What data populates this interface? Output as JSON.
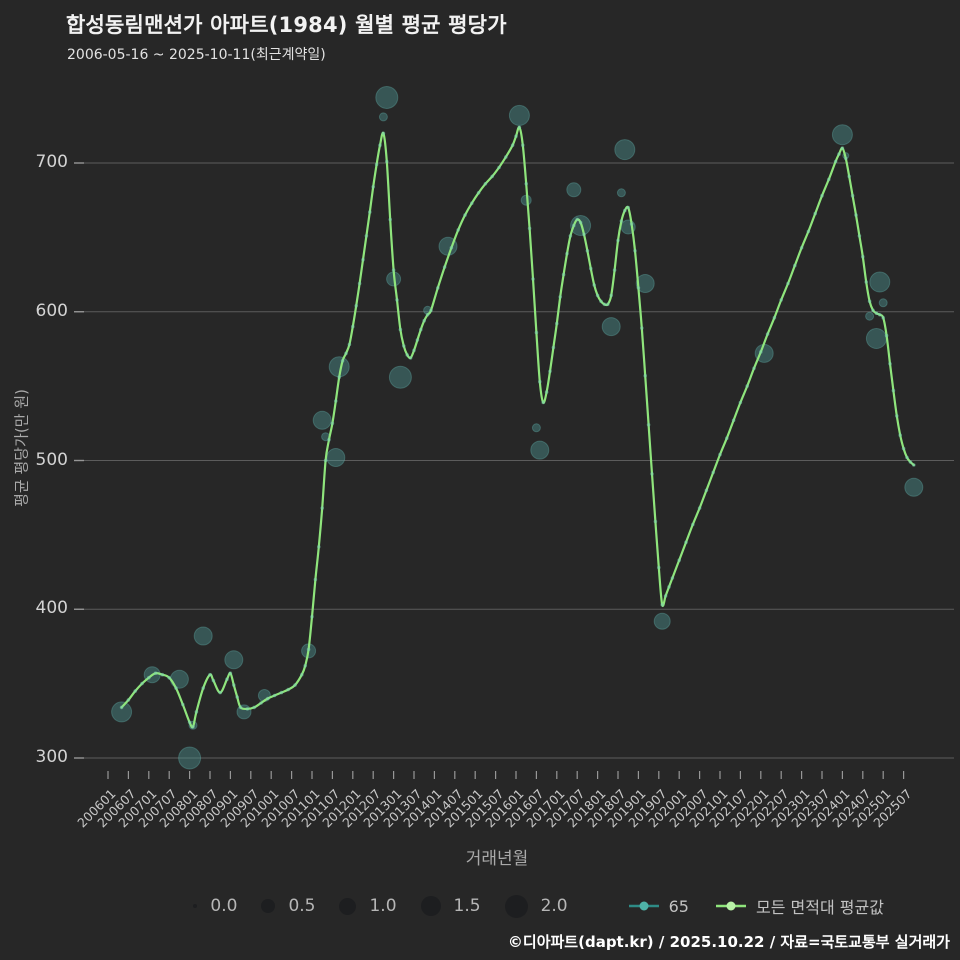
{
  "header": {
    "title": "합성동림맨션가 아파트(1984) 월별 평균 평당가",
    "subtitle": "2006-05-16 ~ 2025-10-11(최근계약일)"
  },
  "footer": {
    "credit": "©디아파트(dapt.kr) / 2025.10.22 / 자료=국토교통부 실거래가"
  },
  "axes": {
    "x_title": "거래년월",
    "y_title": "평균 평당가(만 원)",
    "y_ticks": [
      700,
      600,
      500,
      400,
      300
    ],
    "x_tick_labels": [
      "200601",
      "200607",
      "200701",
      "200707",
      "200801",
      "200807",
      "200901",
      "200907",
      "201001",
      "201007",
      "201101",
      "201107",
      "201201",
      "201207",
      "201301",
      "201307",
      "201401",
      "201407",
      "201501",
      "201507",
      "201601",
      "201607",
      "201701",
      "201707",
      "201801",
      "201807",
      "201901",
      "201907",
      "202001",
      "202007",
      "202101",
      "202107",
      "202201",
      "202207",
      "202301",
      "202307",
      "202401",
      "202407",
      "202501",
      "202507"
    ]
  },
  "legend": {
    "sizes": [
      {
        "label": "0.0",
        "r": 2.2
      },
      {
        "label": "0.5",
        "r": 7
      },
      {
        "label": "1.0",
        "r": 8.5
      },
      {
        "label": "1.5",
        "r": 10
      },
      {
        "label": "2.0",
        "r": 11.5
      }
    ],
    "series": [
      {
        "label": "65",
        "line": "#2e8b86",
        "marker": "#4fb3a8"
      },
      {
        "label": "모든 면적대 평균값",
        "line": "#8fe57c",
        "marker": "#b8f2a6"
      }
    ]
  },
  "colors": {
    "background": "#272727",
    "gridline": "#5c5c5c",
    "tick": "#979797",
    "line": "#8fe57c",
    "line_point_dot": "rgba(125,210,180,0.5)",
    "bubble_fill": "rgba(78,153,150,0.42)",
    "bubble_edge": "rgba(100,180,175,0.35)"
  },
  "chart_data": {
    "type": "line+bubble",
    "title": "합성동림맨션가 아파트(1984) 월별 평균 평당가",
    "xlabel": "거래년월",
    "ylabel": "평균 평당가(만 원)",
    "x_range": [
      "2006-01",
      "2025-10"
    ],
    "ylim": [
      280,
      770
    ],
    "grid": "horizontal-only",
    "legend_position": "bottom",
    "line_series": {
      "name": "모든 면적대 평균값",
      "points": [
        [
          "2006-05",
          334
        ],
        [
          "2006-07",
          339
        ],
        [
          "2006-09",
          345
        ],
        [
          "2006-11",
          350
        ],
        [
          "2007-01",
          354
        ],
        [
          "2007-03",
          357
        ],
        [
          "2007-05",
          356
        ],
        [
          "2007-07",
          354
        ],
        [
          "2007-09",
          347
        ],
        [
          "2007-11",
          336
        ],
        [
          "2008-01",
          324
        ],
        [
          "2008-02",
          321
        ],
        [
          "2008-03",
          331
        ],
        [
          "2008-05",
          347
        ],
        [
          "2008-07",
          356
        ],
        [
          "2008-08",
          352
        ],
        [
          "2008-10",
          344
        ],
        [
          "2008-12",
          353
        ],
        [
          "2009-01",
          357
        ],
        [
          "2009-02",
          349
        ],
        [
          "2009-03",
          341
        ],
        [
          "2009-04",
          334
        ],
        [
          "2009-06",
          333
        ],
        [
          "2009-08",
          334
        ],
        [
          "2009-10",
          337
        ],
        [
          "2009-12",
          340
        ],
        [
          "2010-02",
          342
        ],
        [
          "2010-04",
          344
        ],
        [
          "2010-06",
          346
        ],
        [
          "2010-08",
          349
        ],
        [
          "2010-10",
          356
        ],
        [
          "2010-11",
          362
        ],
        [
          "2010-12",
          373
        ],
        [
          "2011-01",
          395
        ],
        [
          "2011-02",
          420
        ],
        [
          "2011-03",
          442
        ],
        [
          "2011-04",
          468
        ],
        [
          "2011-05",
          500
        ],
        [
          "2011-06",
          514
        ],
        [
          "2011-07",
          525
        ],
        [
          "2011-08",
          540
        ],
        [
          "2011-09",
          556
        ],
        [
          "2011-10",
          567
        ],
        [
          "2011-11",
          572
        ],
        [
          "2011-12",
          578
        ],
        [
          "2012-01",
          590
        ],
        [
          "2012-02",
          604
        ],
        [
          "2012-03",
          619
        ],
        [
          "2012-04",
          635
        ],
        [
          "2012-05",
          651
        ],
        [
          "2012-06",
          667
        ],
        [
          "2012-07",
          684
        ],
        [
          "2012-08",
          699
        ],
        [
          "2012-09",
          712
        ],
        [
          "2012-10",
          720
        ],
        [
          "2012-11",
          701
        ],
        [
          "2012-12",
          662
        ],
        [
          "2013-01",
          628
        ],
        [
          "2013-02",
          608
        ],
        [
          "2013-03",
          588
        ],
        [
          "2013-04",
          577
        ],
        [
          "2013-05",
          571
        ],
        [
          "2013-06",
          569
        ],
        [
          "2013-07",
          574
        ],
        [
          "2013-08",
          581
        ],
        [
          "2013-09",
          588
        ],
        [
          "2013-10",
          594
        ],
        [
          "2013-11",
          598
        ],
        [
          "2013-12",
          601
        ],
        [
          "2014-02",
          616
        ],
        [
          "2014-04",
          630
        ],
        [
          "2014-06",
          643
        ],
        [
          "2014-08",
          655
        ],
        [
          "2014-10",
          665
        ],
        [
          "2014-12",
          673
        ],
        [
          "2015-02",
          680
        ],
        [
          "2015-04",
          686
        ],
        [
          "2015-06",
          691
        ],
        [
          "2015-08",
          697
        ],
        [
          "2015-10",
          704
        ],
        [
          "2015-12",
          712
        ],
        [
          "2016-01",
          718
        ],
        [
          "2016-02",
          724
        ],
        [
          "2016-03",
          712
        ],
        [
          "2016-04",
          686
        ],
        [
          "2016-05",
          656
        ],
        [
          "2016-06",
          622
        ],
        [
          "2016-07",
          586
        ],
        [
          "2016-08",
          553
        ],
        [
          "2016-09",
          539
        ],
        [
          "2016-10",
          546
        ],
        [
          "2016-11",
          560
        ],
        [
          "2016-12",
          576
        ],
        [
          "2017-01",
          592
        ],
        [
          "2017-02",
          610
        ],
        [
          "2017-03",
          625
        ],
        [
          "2017-04",
          639
        ],
        [
          "2017-05",
          651
        ],
        [
          "2017-06",
          658
        ],
        [
          "2017-07",
          662
        ],
        [
          "2017-08",
          660
        ],
        [
          "2017-09",
          652
        ],
        [
          "2017-10",
          641
        ],
        [
          "2017-11",
          629
        ],
        [
          "2017-12",
          618
        ],
        [
          "2018-01",
          611
        ],
        [
          "2018-02",
          607
        ],
        [
          "2018-03",
          605
        ],
        [
          "2018-04",
          605
        ],
        [
          "2018-05",
          611
        ],
        [
          "2018-06",
          628
        ],
        [
          "2018-07",
          648
        ],
        [
          "2018-08",
          661
        ],
        [
          "2018-09",
          668
        ],
        [
          "2018-10",
          670
        ],
        [
          "2018-11",
          659
        ],
        [
          "2018-12",
          641
        ],
        [
          "2019-01",
          616
        ],
        [
          "2019-02",
          589
        ],
        [
          "2019-03",
          557
        ],
        [
          "2019-04",
          524
        ],
        [
          "2019-05",
          491
        ],
        [
          "2019-06",
          459
        ],
        [
          "2019-07",
          428
        ],
        [
          "2019-08",
          403
        ],
        [
          "2019-09",
          409
        ],
        [
          "2019-10",
          415
        ],
        [
          "2019-11",
          421
        ],
        [
          "2020-01",
          433
        ],
        [
          "2020-03",
          445
        ],
        [
          "2020-05",
          457
        ],
        [
          "2020-07",
          468
        ],
        [
          "2020-09",
          480
        ],
        [
          "2020-11",
          492
        ],
        [
          "2021-01",
          504
        ],
        [
          "2021-03",
          515
        ],
        [
          "2021-05",
          527
        ],
        [
          "2021-07",
          539
        ],
        [
          "2021-09",
          550
        ],
        [
          "2021-11",
          562
        ],
        [
          "2022-01",
          573
        ],
        [
          "2022-03",
          585
        ],
        [
          "2022-05",
          596
        ],
        [
          "2022-07",
          608
        ],
        [
          "2022-09",
          619
        ],
        [
          "2022-11",
          631
        ],
        [
          "2023-01",
          643
        ],
        [
          "2023-03",
          654
        ],
        [
          "2023-05",
          666
        ],
        [
          "2023-07",
          678
        ],
        [
          "2023-09",
          689
        ],
        [
          "2023-11",
          701
        ],
        [
          "2023-12",
          706
        ],
        [
          "2024-01",
          710
        ],
        [
          "2024-02",
          703
        ],
        [
          "2024-03",
          691
        ],
        [
          "2024-04",
          678
        ],
        [
          "2024-05",
          665
        ],
        [
          "2024-06",
          651
        ],
        [
          "2024-07",
          637
        ],
        [
          "2024-08",
          620
        ],
        [
          "2024-09",
          607
        ],
        [
          "2024-10",
          601
        ],
        [
          "2024-11",
          599
        ],
        [
          "2024-12",
          598
        ],
        [
          "2025-01",
          596
        ],
        [
          "2025-02",
          584
        ],
        [
          "2025-03",
          565
        ],
        [
          "2025-04",
          547
        ],
        [
          "2025-05",
          530
        ],
        [
          "2025-06",
          517
        ],
        [
          "2025-07",
          508
        ],
        [
          "2025-08",
          502
        ],
        [
          "2025-09",
          499
        ],
        [
          "2025-10",
          497
        ]
      ]
    },
    "bubble_series": {
      "name": "65",
      "note": "points are [yyyy-mm, 평당가(만원), marker radius px]",
      "points": [
        [
          "2006-05",
          331,
          10
        ],
        [
          "2007-02",
          356,
          8
        ],
        [
          "2007-10",
          353,
          9
        ],
        [
          "2008-01",
          300,
          11
        ],
        [
          "2008-02",
          322,
          4
        ],
        [
          "2008-05",
          382,
          9
        ],
        [
          "2009-02",
          366,
          9
        ],
        [
          "2009-05",
          331,
          7
        ],
        [
          "2009-11",
          342,
          6
        ],
        [
          "2010-12",
          372,
          7
        ],
        [
          "2011-04",
          527,
          9
        ],
        [
          "2011-05",
          516,
          4
        ],
        [
          "2011-08",
          502,
          9
        ],
        [
          "2011-09",
          563,
          10
        ],
        [
          "2012-10",
          731,
          4
        ],
        [
          "2012-11",
          744,
          11
        ],
        [
          "2013-01",
          622,
          7
        ],
        [
          "2013-03",
          556,
          11
        ],
        [
          "2013-11",
          601,
          4
        ],
        [
          "2014-05",
          644,
          9
        ],
        [
          "2016-02",
          732,
          10
        ],
        [
          "2016-04",
          675,
          5
        ],
        [
          "2016-07",
          522,
          4
        ],
        [
          "2016-08",
          507,
          9
        ],
        [
          "2017-06",
          682,
          7
        ],
        [
          "2017-08",
          658,
          10
        ],
        [
          "2018-05",
          590,
          9
        ],
        [
          "2018-08",
          680,
          4
        ],
        [
          "2018-09",
          709,
          10
        ],
        [
          "2018-10",
          657,
          7
        ],
        [
          "2019-03",
          619,
          9
        ],
        [
          "2019-08",
          392,
          8
        ],
        [
          "2022-02",
          572,
          9
        ],
        [
          "2024-01",
          719,
          10
        ],
        [
          "2024-02",
          705,
          3
        ],
        [
          "2024-09",
          597,
          4
        ],
        [
          "2024-11",
          582,
          10
        ],
        [
          "2024-12",
          620,
          10
        ],
        [
          "2025-01",
          606,
          4
        ],
        [
          "2025-10",
          482,
          9
        ]
      ]
    }
  }
}
